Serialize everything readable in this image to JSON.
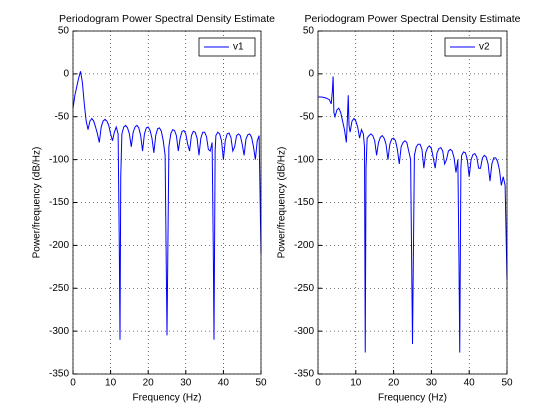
{
  "chart_data": [
    {
      "type": "line",
      "title": "Periodogram Power Spectral Density Estimate",
      "xlabel": "Frequency (Hz)",
      "ylabel": "Power/frequency (dB/Hz)",
      "xlim": [
        0,
        50
      ],
      "ylim": [
        -350,
        50
      ],
      "xticks": [
        0,
        10,
        20,
        30,
        40,
        50
      ],
      "yticks": [
        -350,
        -300,
        -250,
        -200,
        -150,
        -100,
        -50,
        0,
        50
      ],
      "grid": true,
      "legend": "upper right",
      "x": [
        0,
        0.5,
        1,
        1.5,
        2,
        2.5,
        3,
        3.5,
        4,
        4.5,
        5,
        5.5,
        6,
        6.5,
        7,
        7.5,
        8,
        8.5,
        9,
        9.5,
        10,
        10.5,
        11,
        11.5,
        12,
        12.3,
        12.5,
        12.7,
        13,
        13.5,
        14,
        14.5,
        15,
        15.5,
        16,
        16.5,
        17,
        17.5,
        18,
        18.5,
        19,
        19.5,
        20,
        20.5,
        21,
        21.5,
        22,
        22.5,
        23,
        23.5,
        24,
        24.5,
        25,
        25.5,
        26,
        26.5,
        27,
        27.5,
        28,
        28.5,
        29,
        29.5,
        30,
        30.5,
        31,
        31.5,
        32,
        32.5,
        33,
        33.5,
        34,
        34.5,
        35,
        35.5,
        36,
        36.5,
        37,
        37.3,
        37.5,
        37.8,
        38,
        38.5,
        39,
        39.5,
        40,
        40.5,
        41,
        41.5,
        42,
        42.5,
        43,
        43.5,
        44,
        44.5,
        45,
        45.5,
        46,
        46.5,
        47,
        47.5,
        48,
        48.5,
        49,
        49.5,
        50
      ],
      "series": [
        {
          "name": "v1",
          "color": "#0000ff",
          "values": [
            -40,
            -25,
            -15,
            -5,
            3,
            -10,
            -35,
            -55,
            -65,
            -55,
            -52,
            -55,
            -62,
            -70,
            -80,
            -62,
            -55,
            -53,
            -55,
            -60,
            -70,
            -78,
            -68,
            -62,
            -70,
            -195,
            -310,
            -120,
            -70,
            -62,
            -60,
            -63,
            -70,
            -85,
            -68,
            -62,
            -60,
            -63,
            -72,
            -90,
            -70,
            -63,
            -62,
            -66,
            -75,
            -92,
            -72,
            -64,
            -63,
            -67,
            -78,
            -95,
            -305,
            -85,
            -70,
            -65,
            -66,
            -72,
            -90,
            -75,
            -67,
            -66,
            -70,
            -82,
            -90,
            -72,
            -67,
            -68,
            -75,
            -95,
            -75,
            -68,
            -68,
            -73,
            -88,
            -90,
            -80,
            -200,
            -310,
            -90,
            -72,
            -68,
            -70,
            -78,
            -100,
            -78,
            -70,
            -69,
            -74,
            -90,
            -85,
            -72,
            -70,
            -72,
            -82,
            -95,
            -76,
            -71,
            -70,
            -74,
            -85,
            -100,
            -78,
            -72,
            -210
          ]
        }
      ]
    },
    {
      "type": "line",
      "title": "Periodogram Power Spectral Density Estimate",
      "xlabel": "Frequency (Hz)",
      "ylabel": "Power/frequency (dB/Hz)",
      "xlim": [
        0,
        50
      ],
      "ylim": [
        -350,
        50
      ],
      "xticks": [
        0,
        10,
        20,
        30,
        40,
        50
      ],
      "yticks": [
        -350,
        -300,
        -250,
        -200,
        -150,
        -100,
        -50,
        0,
        50
      ],
      "grid": true,
      "legend": "upper right",
      "x": [
        0,
        1,
        2,
        3,
        3.5,
        3.8,
        4,
        4.2,
        4.5,
        5,
        5.5,
        6,
        6.5,
        7,
        7.5,
        7.8,
        8,
        8.2,
        8.5,
        9,
        9.5,
        10,
        10.5,
        11,
        11.5,
        12,
        12.3,
        12.5,
        12.7,
        13,
        13.5,
        14,
        14.5,
        15,
        15.5,
        16,
        16.5,
        17,
        17.5,
        18,
        18.5,
        19,
        19.5,
        20,
        20.5,
        21,
        21.5,
        22,
        22.5,
        23,
        23.5,
        24,
        24.5,
        25,
        25.5,
        26,
        26.5,
        27,
        27.5,
        28,
        28.5,
        29,
        29.5,
        30,
        30.5,
        31,
        31.5,
        32,
        32.5,
        33,
        33.5,
        34,
        34.5,
        35,
        35.5,
        36,
        36.5,
        37,
        37.3,
        37.5,
        37.8,
        38,
        38.5,
        39,
        39.5,
        40,
        40.5,
        41,
        41.5,
        42,
        42.5,
        43,
        43.5,
        44,
        44.5,
        45,
        45.5,
        46,
        46.5,
        47,
        47.5,
        48,
        48.5,
        49,
        49.5,
        50
      ],
      "series": [
        {
          "name": "v2",
          "color": "#0000ff",
          "values": [
            -27,
            -27,
            -28,
            -30,
            -35,
            -20,
            -3,
            -45,
            -50,
            -42,
            -40,
            -45,
            -55,
            -65,
            -80,
            -50,
            -25,
            -60,
            -68,
            -55,
            -52,
            -55,
            -62,
            -75,
            -65,
            -70,
            -85,
            -325,
            -110,
            -75,
            -72,
            -70,
            -72,
            -78,
            -95,
            -80,
            -74,
            -72,
            -75,
            -82,
            -100,
            -82,
            -76,
            -75,
            -78,
            -88,
            -105,
            -85,
            -80,
            -78,
            -80,
            -90,
            -100,
            -315,
            -95,
            -85,
            -82,
            -82,
            -88,
            -110,
            -92,
            -86,
            -84,
            -87,
            -98,
            -110,
            -92,
            -87,
            -86,
            -90,
            -105,
            -100,
            -90,
            -88,
            -90,
            -98,
            -115,
            -100,
            -220,
            -325,
            -110,
            -95,
            -91,
            -92,
            -100,
            -120,
            -100,
            -94,
            -93,
            -97,
            -110,
            -110,
            -98,
            -95,
            -97,
            -105,
            -125,
            -105,
            -98,
            -98,
            -102,
            -112,
            -130,
            -120,
            -130,
            -240
          ]
        }
      ]
    }
  ]
}
